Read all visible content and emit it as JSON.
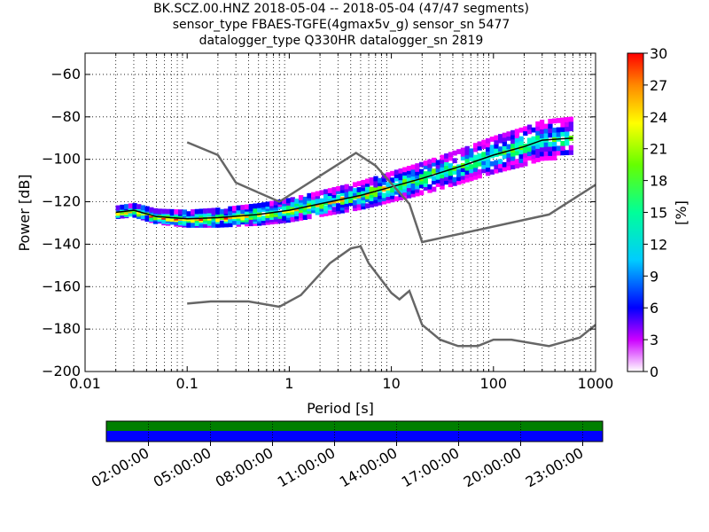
{
  "header": {
    "line1": "BK.SCZ.00.HNZ   2018-05-04 -- 2018-05-04  (47/47 segments)",
    "line2": "sensor_type FBAES-TGFE(4gmax5v_g) sensor_sn 5477",
    "line3": "datalogger_type Q330HR datalogger_sn 2819"
  },
  "chart_data": {
    "type": "heatmap",
    "xlabel": "Period [s]",
    "ylabel": "Power [dB]",
    "x_scale": "log",
    "xlim": [
      0.01,
      1000
    ],
    "ylim": [
      -200,
      -50
    ],
    "x_ticks": [
      "0.01",
      "0.1",
      "1",
      "10",
      "100",
      "1000"
    ],
    "y_ticks": [
      "−200",
      "−180",
      "−160",
      "−140",
      "−120",
      "−100",
      "−80",
      "−60"
    ],
    "grid": true,
    "colorbar": {
      "label": "[%]",
      "range": [
        0,
        30
      ],
      "ticks": [
        "0",
        "3",
        "6",
        "9",
        "12",
        "15",
        "18",
        "21",
        "24",
        "27",
        "30"
      ]
    },
    "density_band": [
      {
        "x": 0.02,
        "y": -125
      },
      {
        "x": 0.03,
        "y": -124
      },
      {
        "x": 0.05,
        "y": -127
      },
      {
        "x": 0.1,
        "y": -128
      },
      {
        "x": 0.2,
        "y": -127.5
      },
      {
        "x": 0.5,
        "y": -126
      },
      {
        "x": 1,
        "y": -124
      },
      {
        "x": 2,
        "y": -121
      },
      {
        "x": 5,
        "y": -117
      },
      {
        "x": 10,
        "y": -113
      },
      {
        "x": 20,
        "y": -109
      },
      {
        "x": 50,
        "y": -103
      },
      {
        "x": 100,
        "y": -98
      },
      {
        "x": 200,
        "y": -94
      },
      {
        "x": 300,
        "y": -91
      },
      {
        "x": 600,
        "y": -90
      }
    ],
    "series": [
      {
        "points": [
          {
            "x": 0.1,
            "y": -92
          },
          {
            "x": 0.2,
            "y": -98
          },
          {
            "x": 0.3,
            "y": -111
          },
          {
            "x": 0.8,
            "y": -120
          },
          {
            "x": 4.5,
            "y": -97
          },
          {
            "x": 7,
            "y": -103
          },
          {
            "x": 15,
            "y": -121
          },
          {
            "x": 20,
            "y": -139
          },
          {
            "x": 350,
            "y": -126
          },
          {
            "x": 1000,
            "y": -112
          }
        ]
      },
      {
        "points": [
          {
            "x": 0.1,
            "y": -168
          },
          {
            "x": 0.17,
            "y": -167
          },
          {
            "x": 0.4,
            "y": -167
          },
          {
            "x": 0.8,
            "y": -169.5
          },
          {
            "x": 1.3,
            "y": -164
          },
          {
            "x": 2.5,
            "y": -149
          },
          {
            "x": 4,
            "y": -142
          },
          {
            "x": 5,
            "y": -141
          },
          {
            "x": 6,
            "y": -149
          },
          {
            "x": 10,
            "y": -163
          },
          {
            "x": 12,
            "y": -166
          },
          {
            "x": 15,
            "y": -162
          },
          {
            "x": 20,
            "y": -178
          },
          {
            "x": 30,
            "y": -185
          },
          {
            "x": 45,
            "y": -188
          },
          {
            "x": 70,
            "y": -188
          },
          {
            "x": 100,
            "y": -185
          },
          {
            "x": 150,
            "y": -185
          },
          {
            "x": 350,
            "y": -188
          },
          {
            "x": 700,
            "y": -184
          },
          {
            "x": 1000,
            "y": -178
          }
        ]
      }
    ]
  },
  "timeline": {
    "tick_labels": [
      "02:00:00",
      "05:00:00",
      "08:00:00",
      "11:00:00",
      "14:00:00",
      "17:00:00",
      "20:00:00",
      "23:00:00"
    ],
    "colors": {
      "top": "#007f00",
      "bottom": "#0000ff"
    }
  },
  "colors": {
    "reference_line": "#666666",
    "mode_line": "#000000"
  }
}
